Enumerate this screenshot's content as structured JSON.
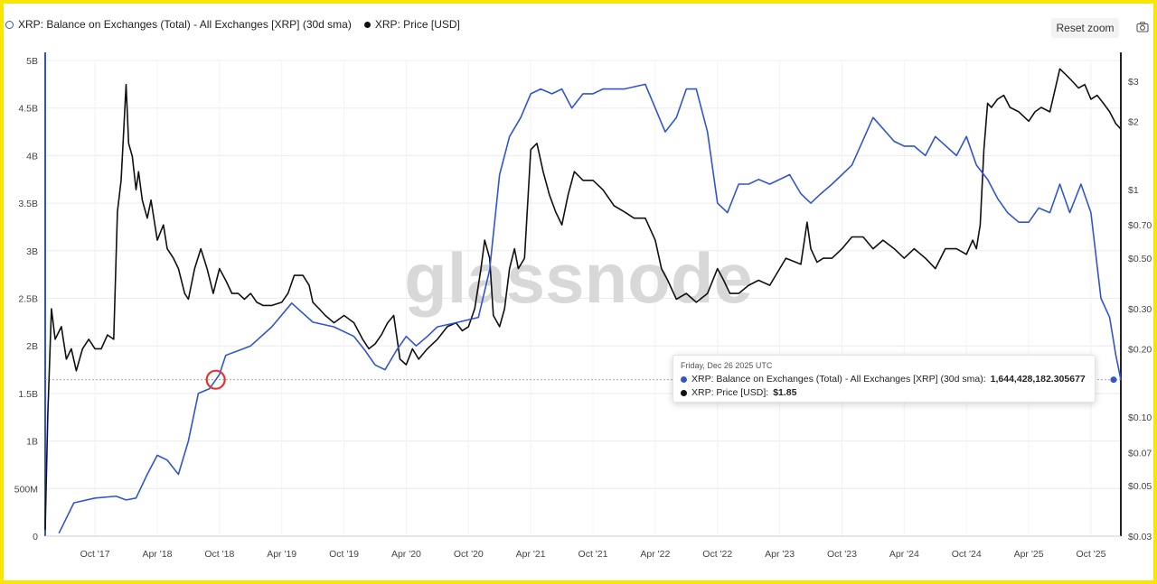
{
  "toolbar": {
    "reset_zoom_label": "Reset zoom",
    "camera_icon": "camera-icon"
  },
  "watermark": "glassnode",
  "tooltip": {
    "date": "Friday, Dec 26 2025 UTC",
    "balance_label": "XRP: Balance on Exchanges (Total) - All Exchanges [XRP] (30d sma):",
    "balance_value": "1,644,428,182.305677",
    "price_label": "XRP: Price [USD]:",
    "price_value": "$1.85"
  },
  "colors": {
    "balance": "#2f55d4",
    "price": "#111111",
    "highlight": "#e5332a",
    "frame": "#f7e600"
  },
  "chart_data": {
    "type": "line",
    "legend": [
      "XRP: Balance on Exchanges (Total) - All Exchanges [XRP] (30d sma)",
      "XRP: Price [USD]"
    ],
    "legend_position": "top-left",
    "grid": true,
    "x_ticks": [
      "Oct '17",
      "Apr '18",
      "Oct '18",
      "Apr '19",
      "Oct '19",
      "Apr '20",
      "Oct '20",
      "Apr '21",
      "Oct '21",
      "Apr '22",
      "Oct '22",
      "Apr '23",
      "Oct '23",
      "Apr '24",
      "Oct '24",
      "Apr '25",
      "Oct '25"
    ],
    "x_range": [
      2017.35,
      2025.99
    ],
    "y_left": {
      "ticks": [
        0,
        500000000,
        1000000000,
        1500000000,
        2000000000,
        2500000000,
        3000000000,
        3500000000,
        4000000000,
        4500000000,
        5000000000
      ],
      "tick_labels": [
        "0",
        "500M",
        "1B",
        "1.5B",
        "2B",
        "2.5B",
        "3B",
        "3.5B",
        "4B",
        "4.5B",
        "5B"
      ],
      "range": [
        0,
        5000000000
      ]
    },
    "y_right": {
      "scale": "log",
      "ticks": [
        0.03,
        0.05,
        0.07,
        0.1,
        0.2,
        0.3,
        0.5,
        0.7,
        1,
        2,
        3
      ],
      "tick_labels": [
        "$0.03",
        "$0.05",
        "$0.07",
        "$0.10",
        "$0.20",
        "$0.30",
        "$0.50",
        "$0.70",
        "$1",
        "$2",
        "$3"
      ],
      "range": [
        0.03,
        3.7
      ]
    },
    "series": [
      {
        "name": "XRP: Balance on Exchanges (Total) - All Exchanges [XRP] (30d sma)",
        "axis": "left",
        "x": [
          2017.46,
          2017.58,
          2017.75,
          2017.92,
          2018.0,
          2018.08,
          2018.17,
          2018.25,
          2018.33,
          2018.42,
          2018.5,
          2018.58,
          2018.67,
          2018.75,
          2018.8,
          2018.9,
          2019.0,
          2019.17,
          2019.33,
          2019.5,
          2019.67,
          2019.83,
          2019.92,
          2020.0,
          2020.08,
          2020.17,
          2020.25,
          2020.33,
          2020.42,
          2020.5,
          2020.67,
          2020.83,
          2020.92,
          2021.0,
          2021.08,
          2021.17,
          2021.25,
          2021.33,
          2021.42,
          2021.5,
          2021.58,
          2021.67,
          2021.75,
          2021.83,
          2022.0,
          2022.17,
          2022.25,
          2022.33,
          2022.42,
          2022.5,
          2022.58,
          2022.67,
          2022.75,
          2022.83,
          2022.92,
          2023.0,
          2023.08,
          2023.17,
          2023.33,
          2023.42,
          2023.5,
          2023.58,
          2023.67,
          2023.75,
          2023.83,
          2024.0,
          2024.17,
          2024.25,
          2024.33,
          2024.42,
          2024.5,
          2024.67,
          2024.75,
          2024.83,
          2024.92,
          2025.0,
          2025.08,
          2025.17,
          2025.25,
          2025.33,
          2025.42,
          2025.5,
          2025.58,
          2025.67,
          2025.75,
          2025.83,
          2025.9,
          2025.95,
          2025.99
        ],
        "y": [
          30000000,
          350000000,
          400000000,
          420000000,
          380000000,
          400000000,
          650000000,
          850000000,
          800000000,
          650000000,
          1000000000,
          1500000000,
          1550000000,
          1700000000,
          1900000000,
          1950000000,
          2000000000,
          2200000000,
          2450000000,
          2250000000,
          2200000000,
          2100000000,
          1950000000,
          1800000000,
          1750000000,
          1950000000,
          2100000000,
          2000000000,
          2100000000,
          2200000000,
          2250000000,
          2300000000,
          2800000000,
          3800000000,
          4200000000,
          4400000000,
          4650000000,
          4700000000,
          4650000000,
          4700000000,
          4500000000,
          4650000000,
          4650000000,
          4700000000,
          4700000000,
          4750000000,
          4500000000,
          4250000000,
          4400000000,
          4700000000,
          4700000000,
          4250000000,
          3500000000,
          3400000000,
          3700000000,
          3700000000,
          3750000000,
          3700000000,
          3800000000,
          3600000000,
          3500000000,
          3600000000,
          3700000000,
          3800000000,
          3900000000,
          4400000000,
          4150000000,
          4100000000,
          4100000000,
          4000000000,
          4200000000,
          4000000000,
          4200000000,
          3900000000,
          3750000000,
          3550000000,
          3400000000,
          3300000000,
          3300000000,
          3450000000,
          3400000000,
          3700000000,
          3400000000,
          3700000000,
          3400000000,
          2500000000,
          2300000000,
          1900000000,
          1644428182.305677
        ]
      },
      {
        "name": "XRP: Price [USD]",
        "axis": "right",
        "x": [
          2017.35,
          2017.37,
          2017.4,
          2017.43,
          2017.48,
          2017.52,
          2017.56,
          2017.6,
          2017.65,
          2017.7,
          2017.75,
          2017.8,
          2017.85,
          2017.9,
          2017.93,
          2017.96,
          2018.0,
          2018.02,
          2018.05,
          2018.08,
          2018.1,
          2018.13,
          2018.17,
          2018.2,
          2018.25,
          2018.3,
          2018.33,
          2018.38,
          2018.42,
          2018.47,
          2018.5,
          2018.55,
          2018.6,
          2018.65,
          2018.7,
          2018.75,
          2018.8,
          2018.85,
          2018.9,
          2018.95,
          2019.0,
          2019.05,
          2019.1,
          2019.17,
          2019.25,
          2019.3,
          2019.35,
          2019.42,
          2019.47,
          2019.5,
          2019.55,
          2019.6,
          2019.67,
          2019.75,
          2019.83,
          2019.9,
          2019.95,
          2020.0,
          2020.05,
          2020.1,
          2020.15,
          2020.2,
          2020.25,
          2020.3,
          2020.35,
          2020.42,
          2020.5,
          2020.58,
          2020.65,
          2020.7,
          2020.75,
          2020.8,
          2020.85,
          2020.88,
          2020.92,
          2020.95,
          2021.0,
          2021.04,
          2021.08,
          2021.12,
          2021.15,
          2021.2,
          2021.25,
          2021.3,
          2021.35,
          2021.4,
          2021.45,
          2021.5,
          2021.55,
          2021.6,
          2021.67,
          2021.75,
          2021.83,
          2021.92,
          2022.0,
          2022.08,
          2022.17,
          2022.25,
          2022.3,
          2022.35,
          2022.42,
          2022.5,
          2022.58,
          2022.67,
          2022.75,
          2022.8,
          2022.85,
          2022.92,
          2023.0,
          2023.08,
          2023.17,
          2023.25,
          2023.3,
          2023.42,
          2023.47,
          2023.5,
          2023.55,
          2023.6,
          2023.67,
          2023.75,
          2023.83,
          2023.92,
          2024.0,
          2024.08,
          2024.17,
          2024.25,
          2024.33,
          2024.42,
          2024.5,
          2024.58,
          2024.67,
          2024.75,
          2024.8,
          2024.83,
          2024.86,
          2024.89,
          2024.92,
          2024.95,
          2025.0,
          2025.05,
          2025.1,
          2025.17,
          2025.25,
          2025.3,
          2025.35,
          2025.42,
          2025.5,
          2025.55,
          2025.6,
          2025.65,
          2025.7,
          2025.75,
          2025.8,
          2025.85,
          2025.9,
          2025.95,
          2025.99
        ],
        "y": [
          0.032,
          0.1,
          0.3,
          0.22,
          0.25,
          0.18,
          0.2,
          0.16,
          0.2,
          0.22,
          0.2,
          0.2,
          0.23,
          0.22,
          0.8,
          1.1,
          2.9,
          1.6,
          1.4,
          1.0,
          1.2,
          0.9,
          0.75,
          0.9,
          0.6,
          0.7,
          0.55,
          0.5,
          0.45,
          0.35,
          0.33,
          0.45,
          0.55,
          0.45,
          0.35,
          0.45,
          0.4,
          0.35,
          0.35,
          0.33,
          0.35,
          0.32,
          0.31,
          0.31,
          0.32,
          0.35,
          0.42,
          0.42,
          0.38,
          0.32,
          0.3,
          0.28,
          0.26,
          0.28,
          0.26,
          0.22,
          0.2,
          0.21,
          0.23,
          0.26,
          0.28,
          0.18,
          0.17,
          0.2,
          0.18,
          0.2,
          0.22,
          0.25,
          0.26,
          0.24,
          0.25,
          0.3,
          0.45,
          0.6,
          0.5,
          0.28,
          0.25,
          0.3,
          0.45,
          0.55,
          0.45,
          0.5,
          1.5,
          1.6,
          1.2,
          0.95,
          0.8,
          0.7,
          0.95,
          1.2,
          1.1,
          1.1,
          1.0,
          0.85,
          0.8,
          0.75,
          0.75,
          0.6,
          0.45,
          0.4,
          0.33,
          0.35,
          0.32,
          0.35,
          0.45,
          0.4,
          0.35,
          0.35,
          0.38,
          0.4,
          0.38,
          0.45,
          0.5,
          0.47,
          0.72,
          0.55,
          0.48,
          0.5,
          0.5,
          0.55,
          0.62,
          0.62,
          0.55,
          0.6,
          0.55,
          0.5,
          0.55,
          0.5,
          0.45,
          0.55,
          0.55,
          0.52,
          0.6,
          0.55,
          0.7,
          1.5,
          2.4,
          2.3,
          2.5,
          2.6,
          2.3,
          2.2,
          2.0,
          2.2,
          2.3,
          2.2,
          3.4,
          3.2,
          3.0,
          2.8,
          2.9,
          2.5,
          2.6,
          2.4,
          2.2,
          1.95,
          1.85
        ]
      }
    ]
  }
}
